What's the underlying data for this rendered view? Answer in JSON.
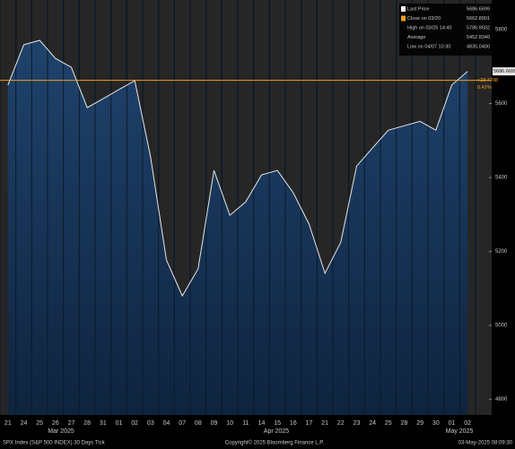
{
  "chart_data": {
    "type": "area",
    "title": "SPX Index (S&P 500 INDEX) 30 Days  Tick",
    "copyright": "Copyright© 2025 Bloomberg Finance L.P.",
    "timestamp": "03-May-2025 08:09:30",
    "months": [
      "Mar 2025",
      "Apr 2025",
      "May 2025"
    ],
    "categories": [
      "21",
      "24",
      "25",
      "26",
      "27",
      "28",
      "31",
      "01",
      "02",
      "03",
      "04",
      "07",
      "08",
      "09",
      "10",
      "11",
      "14",
      "15",
      "16",
      "17",
      "21",
      "22",
      "23",
      "24",
      "25",
      "28",
      "29",
      "30",
      "01",
      "02"
    ],
    "values": [
      5650,
      5759,
      5771,
      5722,
      5698,
      5589,
      5613,
      5638,
      5662,
      5456,
      5177,
      5080,
      5153,
      5419,
      5298,
      5334,
      5407,
      5419,
      5359,
      5274,
      5141,
      5225,
      5431,
      5480,
      5528,
      5540,
      5552,
      5528,
      5650,
      5687
    ],
    "color": "#e6e6e6",
    "close_line": 5662.8901,
    "close_color": "#f0a020",
    "ylim": [
      4758,
      5880
    ],
    "yticks": [
      4800,
      5000,
      5200,
      5400,
      5600,
      5800
    ],
    "legend": [
      {
        "label": "Last Price",
        "value": "5686.6699",
        "color": "#ffffff"
      },
      {
        "label": "Close on 03/20",
        "value": "5662.8901",
        "color": "#f0a020"
      },
      {
        "label": "High on 03/25 14:40",
        "value": "5786.9502"
      },
      {
        "label": "Average",
        "value": "5452.8340"
      },
      {
        "label": "Low on 04/07 10:30",
        "value": "4835.0400"
      }
    ],
    "last_tag": "5686.6699",
    "change": "+23.7798",
    "change_pct": "0.42%"
  }
}
